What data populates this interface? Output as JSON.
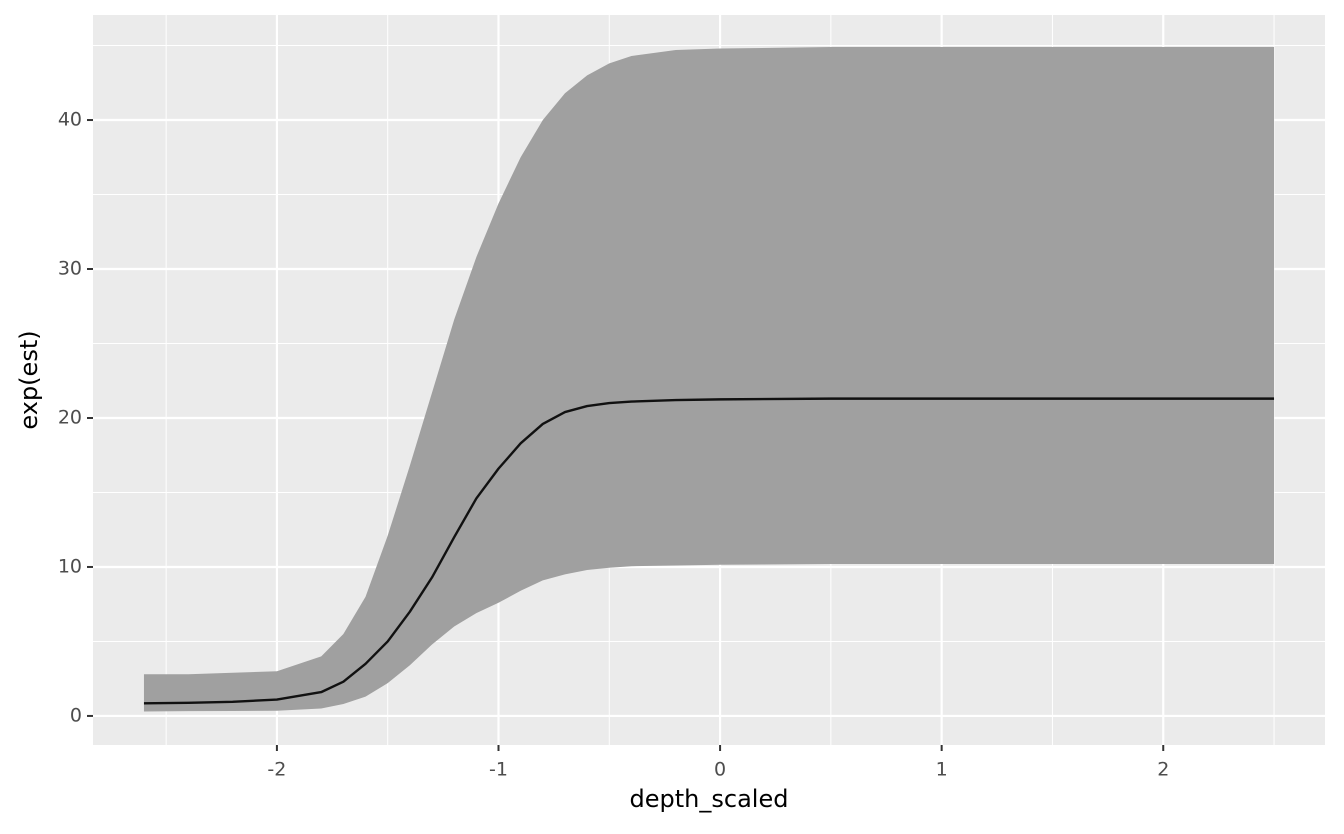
{
  "chart_data": {
    "type": "ribbon-line",
    "x_label": "depth_scaled",
    "y_label": "exp(est)",
    "x": [
      -2.6,
      -2.4,
      -2.2,
      -2.0,
      -1.8,
      -1.7,
      -1.6,
      -1.5,
      -1.4,
      -1.3,
      -1.2,
      -1.1,
      -1.0,
      -0.9,
      -0.8,
      -0.7,
      -0.6,
      -0.5,
      -0.4,
      -0.2,
      0,
      0.5,
      1,
      1.5,
      2,
      2.5
    ],
    "values": [
      0.85,
      0.88,
      0.95,
      1.1,
      1.6,
      2.3,
      3.5,
      5.0,
      7.0,
      9.3,
      12.0,
      14.6,
      16.6,
      18.3,
      19.6,
      20.4,
      20.8,
      21.0,
      21.1,
      21.2,
      21.25,
      21.3,
      21.3,
      21.3,
      21.3,
      21.3
    ],
    "ribbon": {
      "lower": [
        0.3,
        0.32,
        0.33,
        0.35,
        0.5,
        0.8,
        1.3,
        2.2,
        3.4,
        4.8,
        6.0,
        6.9,
        7.6,
        8.4,
        9.1,
        9.5,
        9.8,
        9.95,
        10.05,
        10.1,
        10.15,
        10.2,
        10.2,
        10.2,
        10.2,
        10.2
      ],
      "upper": [
        2.8,
        2.8,
        2.9,
        3.0,
        4.0,
        5.5,
        8.0,
        12.1,
        16.8,
        21.7,
        26.6,
        30.8,
        34.4,
        37.5,
        40.0,
        41.8,
        43.0,
        43.8,
        44.3,
        44.7,
        44.8,
        44.9,
        44.9,
        44.9,
        44.9,
        44.9
      ]
    },
    "color": "#111111",
    "ribbon_color": "#a0a0a0",
    "xlim": [
      -2.83,
      2.73
    ],
    "ylim": [
      -1.95,
      47.05
    ],
    "xticks": [
      -2,
      -1,
      0,
      1,
      2
    ],
    "yticks": [
      0,
      10,
      20,
      30,
      40
    ],
    "grid": true
  }
}
